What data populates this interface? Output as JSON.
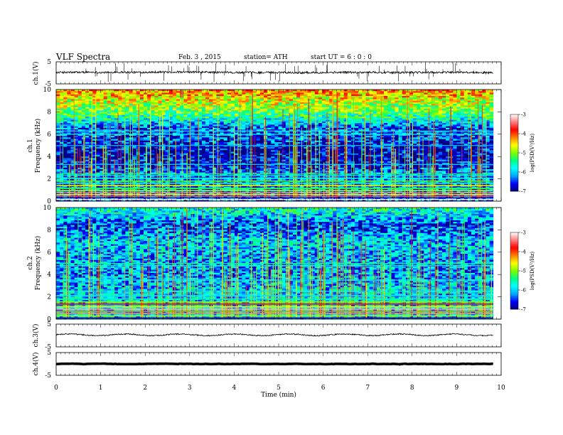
{
  "header": {
    "title": "VLF  Spectra",
    "date": "Feb. 3  , 2015",
    "station": "station= ATH",
    "start": "start  UT  =   6  : 0  : 0"
  },
  "colors": {
    "scale": [
      "#000080",
      "#0000ff",
      "#00aaff",
      "#00ffff",
      "#00ff80",
      "#80ff00",
      "#ffff00",
      "#ff8000",
      "#ff0000",
      "#ff8080",
      "#ffffff"
    ]
  },
  "chart_data": [
    {
      "type": "line",
      "name": "ch1-waveform",
      "ylabel": "ch.1(V)",
      "ylim": [
        -5,
        5
      ],
      "yticks": [
        "5",
        "-5"
      ],
      "x_end_min": 9.82,
      "baseline": 0.2,
      "noise": 0.9,
      "spike_count": 60
    },
    {
      "type": "heatmap",
      "name": "ch1-spectrogram",
      "ylabel": "ch.1",
      "ylabel2": "Frequency  (kHz)",
      "ylim": [
        0,
        10
      ],
      "yticks": [
        "0",
        "2",
        "4",
        "6",
        "8",
        "10"
      ],
      "x_end_min": 9.82,
      "colorbar": {
        "label": "log(PSD(V²/Hz)",
        "ticks": [
          "-3",
          "-4",
          "-5",
          "-6",
          "-7"
        ],
        "range": [
          -7,
          -3
        ]
      },
      "bands": [
        {
          "f": 0.15,
          "w": 0.1,
          "level": -3.0
        },
        {
          "f": 0.3,
          "w": 0.08,
          "level": -6.8
        },
        {
          "f": 0.45,
          "w": 0.1,
          "level": -3.6
        },
        {
          "f": 0.6,
          "w": 0.08,
          "level": -4.6
        },
        {
          "f": 0.75,
          "w": 0.08,
          "level": -3.3
        },
        {
          "f": 0.95,
          "w": 0.1,
          "level": -4.9
        },
        {
          "f": 1.15,
          "w": 0.12,
          "level": -5.3
        },
        {
          "f": 1.4,
          "w": 0.1,
          "level": -4.7
        },
        {
          "f": 1.6,
          "w": 0.1,
          "level": -5.6
        },
        {
          "f": 1.8,
          "w": 0.1,
          "level": -5.2
        },
        {
          "f": 2.05,
          "w": 0.1,
          "level": -5.7
        },
        {
          "f": 2.3,
          "w": 0.08,
          "level": -5.9
        },
        {
          "f": 2.45,
          "w": 0.06,
          "level": -5.4
        },
        {
          "f": 3.3,
          "w": 0.06,
          "level": -6.0
        },
        {
          "f": 5.0,
          "w": 0.05,
          "level": -6.1
        },
        {
          "f": 6.0,
          "w": 0.06,
          "level": -5.8
        },
        {
          "f": 6.3,
          "w": 0.05,
          "level": -5.9
        }
      ],
      "profile": [
        {
          "f": 0,
          "level": -6.4
        },
        {
          "f": 2.6,
          "level": -6.3
        },
        {
          "f": 3.2,
          "level": -6.7
        },
        {
          "f": 4.5,
          "level": -6.8
        },
        {
          "f": 5.5,
          "level": -6.5
        },
        {
          "f": 6.6,
          "level": -6.4
        },
        {
          "f": 7.3,
          "level": -5.7
        },
        {
          "f": 8.3,
          "level": -5.0
        },
        {
          "f": 9.2,
          "level": -4.6
        },
        {
          "f": 10,
          "level": -4.2
        }
      ]
    },
    {
      "type": "heatmap",
      "name": "ch2-spectrogram",
      "ylabel": "ch.2",
      "ylabel2": "Frequency  (kHz)",
      "ylim": [
        0,
        10
      ],
      "yticks": [
        "0",
        "2",
        "4",
        "6",
        "8",
        "10"
      ],
      "x_end_min": 9.82,
      "colorbar": {
        "label": "log(PSD(V²/Hz)",
        "ticks": [
          "-3",
          "-4",
          "-5",
          "-6",
          "-7"
        ],
        "range": [
          -7,
          -3
        ]
      },
      "bands": [
        {
          "f": 0.1,
          "w": 0.1,
          "level": -6.8
        },
        {
          "f": 0.3,
          "w": 0.08,
          "level": -4.8
        },
        {
          "f": 0.5,
          "w": 0.08,
          "level": -3.4
        },
        {
          "f": 0.7,
          "w": 0.1,
          "level": -4.2
        },
        {
          "f": 0.9,
          "w": 0.08,
          "level": -3.2
        },
        {
          "f": 1.1,
          "w": 0.1,
          "level": -4.6
        },
        {
          "f": 1.35,
          "w": 0.1,
          "level": -3.8
        },
        {
          "f": 1.55,
          "w": 0.1,
          "level": -5.0
        },
        {
          "f": 1.8,
          "w": 0.1,
          "level": -5.6
        },
        {
          "f": 2.1,
          "w": 0.1,
          "level": -5.9
        },
        {
          "f": 2.5,
          "w": 0.08,
          "level": -5.7
        },
        {
          "f": 3.5,
          "w": 0.08,
          "level": -5.8
        },
        {
          "f": 4.8,
          "w": 0.06,
          "level": -5.7
        },
        {
          "f": 5.0,
          "w": 0.05,
          "level": -5.5
        }
      ],
      "profile": [
        {
          "f": 0,
          "level": -5.8
        },
        {
          "f": 2.5,
          "level": -6.0
        },
        {
          "f": 4.0,
          "level": -6.2
        },
        {
          "f": 6.0,
          "level": -6.1
        },
        {
          "f": 7.0,
          "level": -6.0
        },
        {
          "f": 8.5,
          "level": -6.5
        },
        {
          "f": 9.3,
          "level": -5.9
        },
        {
          "f": 10,
          "level": -5.6
        }
      ]
    },
    {
      "type": "line",
      "name": "ch3-waveform",
      "ylabel": "ch.3(V)",
      "ylim": [
        -5,
        5
      ],
      "yticks": [
        "5",
        "-5"
      ],
      "x_end_min": 9.82,
      "baseline": 0.3,
      "noise": 0.5,
      "spike_count": 0
    },
    {
      "type": "line",
      "name": "ch4-waveform",
      "ylabel": "ch.4(V)",
      "ylim": [
        -5,
        5
      ],
      "yticks": [
        "5",
        "-5"
      ],
      "x_end_min": 9.82,
      "baseline": 0.0,
      "noise": 0.05,
      "spike_count": 0
    }
  ],
  "xaxis": {
    "label": "Time  (min)",
    "ticks": [
      "0",
      "1",
      "2",
      "3",
      "4",
      "5",
      "6",
      "7",
      "8",
      "9",
      "10"
    ],
    "xlim": [
      0,
      10
    ]
  }
}
